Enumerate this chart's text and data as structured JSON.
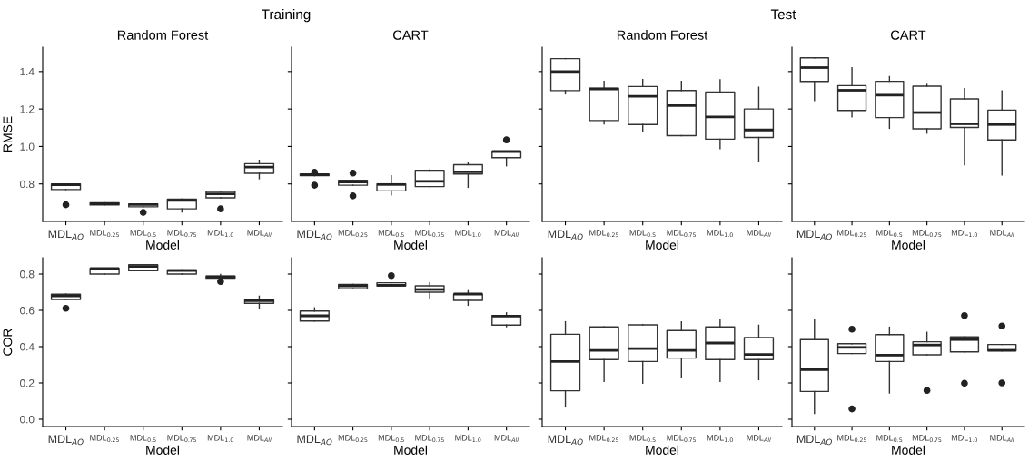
{
  "chart_data": [
    {
      "type": "box",
      "title": "Random Forest",
      "annotations": [
        "Training"
      ],
      "xlabel": "Model",
      "ylabel": "RMSE",
      "categories": [
        "MDL$_{AO}$",
        "MDL$_{0.25}$",
        "MDL$_{0.5}$",
        "MDL$_{0.75}$",
        "MDL$_{1.0}$",
        "MDL$_{All}$"
      ],
      "ylim": [
        0.6,
        1.53
      ],
      "yticks": [
        0.8,
        {
          "value": 1.0,
          "label": "1.0"
        },
        1.2,
        1.4
      ],
      "boxes": [
        {
          "low": 0.77,
          "q1": 0.77,
          "median": 0.796,
          "q3": 0.8,
          "high": 0.8,
          "outliers": [
            0.689
          ]
        },
        {
          "low": 0.688,
          "q1": 0.688,
          "median": 0.694,
          "q3": 0.7,
          "high": 0.7
        },
        {
          "low": 0.678,
          "q1": 0.678,
          "median": 0.69,
          "q3": 0.694,
          "high": 0.694,
          "outliers": [
            0.648
          ]
        },
        {
          "low": 0.65,
          "q1": 0.667,
          "median": 0.712,
          "q3": 0.719,
          "high": 0.719
        },
        {
          "low": 0.726,
          "q1": 0.726,
          "median": 0.747,
          "q3": 0.76,
          "high": 0.76,
          "outliers": [
            0.667
          ]
        },
        {
          "low": 0.828,
          "q1": 0.857,
          "median": 0.89,
          "q3": 0.908,
          "high": 0.926
        }
      ]
    },
    {
      "type": "box",
      "title": "CART",
      "xlabel": "Model",
      "tick_labels": "x",
      "categories": [
        "MDL$_{AO}$",
        "MDL$_{0.25}$",
        "MDL$_{0.5}$",
        "MDL$_{0.75}$",
        "MDL$_{1.0}$",
        "MDL$_{All}$"
      ],
      "ylim": [
        0.6,
        1.53
      ],
      "yticks": [
        0.8,
        1.0,
        1.2,
        1.4
      ],
      "boxes": [
        {
          "low": 0.844,
          "q1": 0.844,
          "median": 0.849,
          "q3": 0.853,
          "high": 0.853,
          "outliers": [
            0.862,
            0.793
          ]
        },
        {
          "low": 0.793,
          "q1": 0.793,
          "median": 0.81,
          "q3": 0.82,
          "high": 0.82,
          "outliers": [
            0.858,
            0.736
          ]
        },
        {
          "low": 0.742,
          "q1": 0.763,
          "median": 0.797,
          "q3": 0.8,
          "high": 0.844
        },
        {
          "low": 0.786,
          "q1": 0.786,
          "median": 0.814,
          "q3": 0.873,
          "high": 0.875
        },
        {
          "low": 0.782,
          "q1": 0.853,
          "median": 0.865,
          "q3": 0.903,
          "high": 0.915
        },
        {
          "low": 0.897,
          "q1": 0.94,
          "median": 0.973,
          "q3": 0.975,
          "high": 0.975,
          "outliers": [
            1.035
          ]
        }
      ]
    },
    {
      "type": "box",
      "title": "Random Forest",
      "annotations": [
        "Test"
      ],
      "xlabel": "Model",
      "tick_labels": "x",
      "categories": [
        "MDL$_{AO}$",
        "MDL$_{0.25}$",
        "MDL$_{0.5}$",
        "MDL$_{0.75}$",
        "MDL$_{1.0}$",
        "MDL$_{All}$"
      ],
      "ylim": [
        0.6,
        1.53
      ],
      "yticks": [
        0.8,
        1.0,
        1.2,
        1.4
      ],
      "boxes": [
        {
          "low": 1.281,
          "q1": 1.298,
          "median": 1.4,
          "q3": 1.469,
          "high": 1.469
        },
        {
          "low": 1.12,
          "q1": 1.138,
          "median": 1.307,
          "q3": 1.311,
          "high": 1.347
        },
        {
          "low": 1.08,
          "q1": 1.117,
          "median": 1.268,
          "q3": 1.32,
          "high": 1.357
        },
        {
          "low": 1.058,
          "q1": 1.058,
          "median": 1.218,
          "q3": 1.299,
          "high": 1.347
        },
        {
          "low": 0.989,
          "q1": 1.039,
          "median": 1.158,
          "q3": 1.29,
          "high": 1.356
        },
        {
          "low": 0.919,
          "q1": 1.048,
          "median": 1.088,
          "q3": 1.2,
          "high": 1.316
        }
      ]
    },
    {
      "type": "box",
      "title": "CART",
      "xlabel": "Model",
      "tick_labels": "x",
      "categories": [
        "MDL$_{AO}$",
        "MDL$_{0.25}$",
        "MDL$_{0.5}$",
        "MDL$_{0.75}$",
        "MDL$_{1.0}$",
        "MDL$_{All}$"
      ],
      "ylim": [
        0.6,
        1.53
      ],
      "yticks": [
        0.8,
        1.0,
        1.2,
        1.4
      ],
      "boxes": [
        {
          "low": 1.245,
          "q1": 1.347,
          "median": 1.421,
          "q3": 1.473,
          "high": 1.473
        },
        {
          "low": 1.158,
          "q1": 1.192,
          "median": 1.3,
          "q3": 1.325,
          "high": 1.42
        },
        {
          "low": 1.097,
          "q1": 1.154,
          "median": 1.274,
          "q3": 1.348,
          "high": 1.373
        },
        {
          "low": 1.071,
          "q1": 1.094,
          "median": 1.181,
          "q3": 1.322,
          "high": 1.331
        },
        {
          "low": 0.903,
          "q1": 1.101,
          "median": 1.121,
          "q3": 1.254,
          "high": 1.309
        },
        {
          "low": 0.848,
          "q1": 1.035,
          "median": 1.117,
          "q3": 1.194,
          "high": 1.297
        }
      ]
    },
    {
      "type": "box",
      "xlabel": "Model",
      "ylabel": "COR",
      "categories": [
        "MDL$_{AO}$",
        "MDL$_{0.25}$",
        "MDL$_{0.5}$",
        "MDL$_{0.75}$",
        "MDL$_{1.0}$",
        "MDL$_{All}$"
      ],
      "ylim": [
        -0.04,
        0.89
      ],
      "yticks": [
        {
          "value": 0.0,
          "label": "0.0"
        },
        0.2,
        0.4,
        0.6,
        0.8
      ],
      "boxes": [
        {
          "low": 0.66,
          "q1": 0.66,
          "median": 0.68,
          "q3": 0.689,
          "high": 0.69,
          "outliers": [
            0.611
          ]
        },
        {
          "low": 0.8,
          "q1": 0.8,
          "median": 0.83,
          "q3": 0.832,
          "high": 0.832
        },
        {
          "low": 0.818,
          "q1": 0.818,
          "median": 0.842,
          "q3": 0.851,
          "high": 0.851
        },
        {
          "low": 0.8,
          "q1": 0.8,
          "median": 0.819,
          "q3": 0.823,
          "high": 0.823
        },
        {
          "low": 0.777,
          "q1": 0.777,
          "median": 0.784,
          "q3": 0.789,
          "high": 0.798,
          "outliers": [
            0.759
          ]
        },
        {
          "low": 0.612,
          "q1": 0.639,
          "median": 0.653,
          "q3": 0.66,
          "high": 0.678
        }
      ]
    },
    {
      "type": "box",
      "xlabel": "Model",
      "tick_labels": "x",
      "categories": [
        "MDL$_{AO}$",
        "MDL$_{0.25}$",
        "MDL$_{0.5}$",
        "MDL$_{0.75}$",
        "MDL$_{1.0}$",
        "MDL$_{All}$"
      ],
      "ylim": [
        -0.04,
        0.89
      ],
      "yticks": [
        0.0,
        0.2,
        0.4,
        0.6,
        0.8
      ],
      "boxes": [
        {
          "low": 0.541,
          "q1": 0.541,
          "median": 0.57,
          "q3": 0.596,
          "high": 0.614
        },
        {
          "low": 0.719,
          "q1": 0.719,
          "median": 0.735,
          "q3": 0.743,
          "high": 0.743
        },
        {
          "low": 0.735,
          "q1": 0.735,
          "median": 0.738,
          "q3": 0.752,
          "high": 0.752,
          "outliers": [
            0.791
          ]
        },
        {
          "low": 0.665,
          "q1": 0.7,
          "median": 0.715,
          "q3": 0.735,
          "high": 0.752
        },
        {
          "low": 0.628,
          "q1": 0.655,
          "median": 0.69,
          "q3": 0.69,
          "high": 0.708
        },
        {
          "low": 0.51,
          "q1": 0.519,
          "median": 0.568,
          "q3": 0.572,
          "high": 0.586
        }
      ]
    },
    {
      "type": "box",
      "xlabel": "Model",
      "tick_labels": "x",
      "categories": [
        "MDL$_{AO}$",
        "MDL$_{0.25}$",
        "MDL$_{0.5}$",
        "MDL$_{0.75}$",
        "MDL$_{1.0}$",
        "MDL$_{All}$"
      ],
      "ylim": [
        -0.04,
        0.89
      ],
      "yticks": [
        0.0,
        0.2,
        0.4,
        0.6,
        0.8
      ],
      "boxes": [
        {
          "low": 0.068,
          "q1": 0.157,
          "median": 0.318,
          "q3": 0.468,
          "high": 0.537
        },
        {
          "low": 0.209,
          "q1": 0.329,
          "median": 0.379,
          "q3": 0.509,
          "high": 0.509
        },
        {
          "low": 0.198,
          "q1": 0.318,
          "median": 0.389,
          "q3": 0.52,
          "high": 0.52
        },
        {
          "low": 0.229,
          "q1": 0.337,
          "median": 0.379,
          "q3": 0.489,
          "high": 0.537
        },
        {
          "low": 0.209,
          "q1": 0.329,
          "median": 0.42,
          "q3": 0.509,
          "high": 0.55
        },
        {
          "low": 0.218,
          "q1": 0.329,
          "median": 0.357,
          "q3": 0.45,
          "high": 0.518
        }
      ]
    },
    {
      "type": "box",
      "xlabel": "Model",
      "tick_labels": "x",
      "categories": [
        "MDL$_{AO}$",
        "MDL$_{0.25}$",
        "MDL$_{0.5}$",
        "MDL$_{0.75}$",
        "MDL$_{1.0}$",
        "MDL$_{All}$"
      ],
      "ylim": [
        -0.04,
        0.89
      ],
      "yticks": [
        0.0,
        0.2,
        0.4,
        0.6,
        0.8
      ],
      "boxes": [
        {
          "low": 0.032,
          "q1": 0.153,
          "median": 0.273,
          "q3": 0.439,
          "high": 0.55
        },
        {
          "low": 0.362,
          "q1": 0.362,
          "median": 0.396,
          "q3": 0.416,
          "high": 0.416,
          "outliers": [
            0.496,
            0.057
          ]
        },
        {
          "low": 0.145,
          "q1": 0.318,
          "median": 0.353,
          "q3": 0.466,
          "high": 0.507
        },
        {
          "low": 0.355,
          "q1": 0.355,
          "median": 0.409,
          "q3": 0.427,
          "high": 0.479,
          "outliers": [
            0.159
          ]
        },
        {
          "low": 0.371,
          "q1": 0.371,
          "median": 0.439,
          "q3": 0.454,
          "high": 0.454,
          "outliers": [
            0.571,
            0.198
          ]
        },
        {
          "low": 0.377,
          "q1": 0.377,
          "median": 0.38,
          "q3": 0.412,
          "high": 0.412,
          "outliers": [
            0.514,
            0.2
          ]
        }
      ]
    }
  ]
}
